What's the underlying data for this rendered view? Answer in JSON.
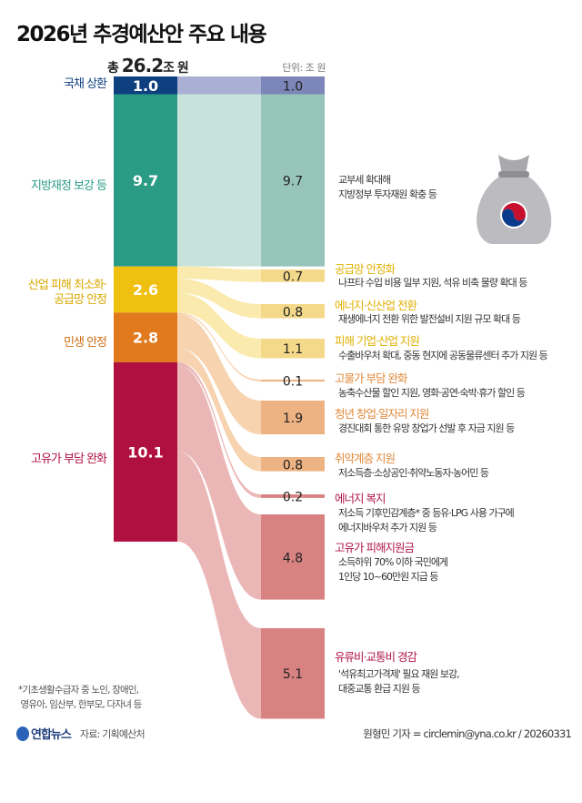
{
  "title": "2026년 추경예산안 주요 내용",
  "total": {
    "prefix": "총",
    "value": "26.2",
    "suffix": "조 원"
  },
  "unit": "단위: 조 원",
  "note": "*기초생활수급자 중 노인, 장애인,\n 영유아, 임산부, 한부모, 다자녀 등",
  "logo": "연합뉴스",
  "source": "자료: 기획예산처",
  "credit": "원형민 기자 = circlemin@yna.co.kr / 20260331",
  "icon": "money-bag-with-taegeuk-icon",
  "chart_data": {
    "type": "sankey",
    "title": "2026년 추경예산안 주요 내용",
    "total": 26.2,
    "unit": "조 원",
    "categories": [
      {
        "label": "국채 상환",
        "value": 1.0,
        "color": "#0e3f7e",
        "flow": "#a9b0d4",
        "bar": "#7c86b8",
        "text": "#0e3f7e"
      },
      {
        "label": "지방재정 보강 등",
        "value": 9.7,
        "color": "#2a9b84",
        "flow": "#c6e2da",
        "bar": "#97c5b9",
        "text": "#2a9b84"
      },
      {
        "label": "산업 피해 최소화·\n공급망 안정",
        "value": 2.6,
        "color": "#f0c010",
        "flow": "#fbeaae",
        "bar": "#f5d98a",
        "text": "#d9a800"
      },
      {
        "label": "민생 안정",
        "value": 2.8,
        "color": "#e07a1c",
        "flow": "#f7d3b0",
        "bar": "#eeb383",
        "text": "#d06d12"
      },
      {
        "label": "고유가 부담 완화",
        "value": 10.1,
        "color": "#b01040",
        "flow": "#ebb6b6",
        "bar": "#d88282",
        "text": "#b01040"
      }
    ],
    "items": [
      {
        "category": 0,
        "value": 1.0,
        "title": "",
        "desc": ""
      },
      {
        "category": 1,
        "value": 9.7,
        "title": "",
        "desc": "교부세 확대해\n지방정부 투자재원 확충 등"
      },
      {
        "category": 2,
        "value": 0.7,
        "title": "공급망 안정화",
        "desc": "나프타 수입 비용 일부 지원, 석유 비축 물량 확대 등",
        "color": "#e0b000"
      },
      {
        "category": 2,
        "value": 0.8,
        "title": "에너지·신산업 전환",
        "desc": "재생에너지 전환 위한 발전설비 지원 규모 확대 등",
        "color": "#e0b000"
      },
      {
        "category": 2,
        "value": 1.1,
        "title": "피해 기업·산업 지원",
        "desc": "수출바우처 확대, 중동 현지에 공동물류센터 추가 지원 등",
        "color": "#e0b000"
      },
      {
        "category": 3,
        "value": 0.1,
        "title": "고물가 부담 완화",
        "desc": "농축수산물 할인 지원, 영화·공연·숙박·휴가 할인 등",
        "color": "#e0883a"
      },
      {
        "category": 3,
        "value": 1.9,
        "title": "청년 창업·일자리 지원",
        "desc": "경진대회 통한 유망 창업가 선발 후 자금 지원 등",
        "color": "#e0883a"
      },
      {
        "category": 3,
        "value": 0.8,
        "title": "취약계층 지원",
        "desc": "저소득층·소상공인·취약노동자·농어민 등",
        "color": "#e0883a"
      },
      {
        "category": 4,
        "value": 0.2,
        "title": "에너지 복지",
        "desc": "저소득 기후민감계층* 중 등유·LPG 사용 가구에\n에너지바우처 추가 지원 등",
        "color": "#b01848"
      },
      {
        "category": 4,
        "value": 4.8,
        "title": "고유가 피해지원금",
        "desc": "소득하위 70% 이하 국민에게\n1인당 10~60만원 지급 등",
        "color": "#b01848"
      },
      {
        "category": 4,
        "value": 5.1,
        "title": "유류비·교통비 경감",
        "desc": "'석유최고가격제' 필요 재원 보강,\n대중교통 환급 지원 등",
        "color": "#b01848"
      }
    ]
  }
}
